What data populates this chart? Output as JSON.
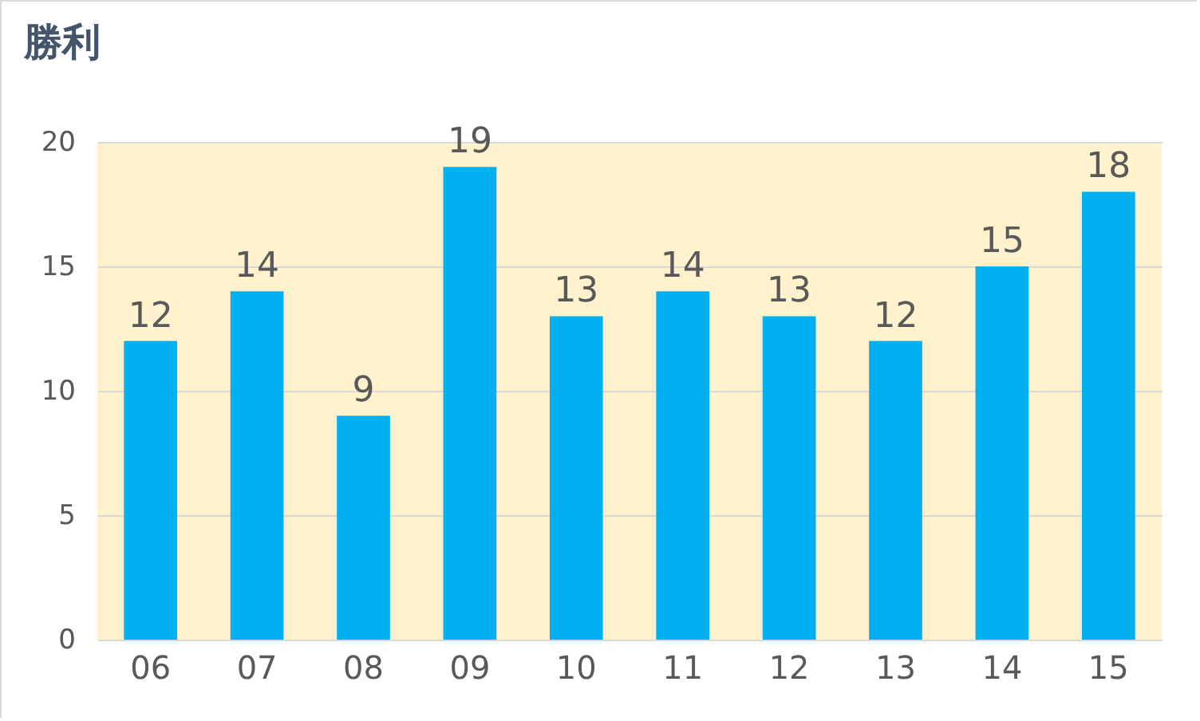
{
  "chart_data": {
    "type": "bar",
    "title": "勝利",
    "categories": [
      "06",
      "07",
      "08",
      "09",
      "10",
      "11",
      "12",
      "13",
      "14",
      "15"
    ],
    "values": [
      12,
      14,
      9,
      19,
      13,
      14,
      13,
      12,
      15,
      18
    ],
    "color": "#00b0f0",
    "ylim": [
      0,
      20
    ],
    "yticks": [
      0,
      5,
      10,
      15,
      20
    ],
    "grid": "y",
    "data_labels": true
  }
}
